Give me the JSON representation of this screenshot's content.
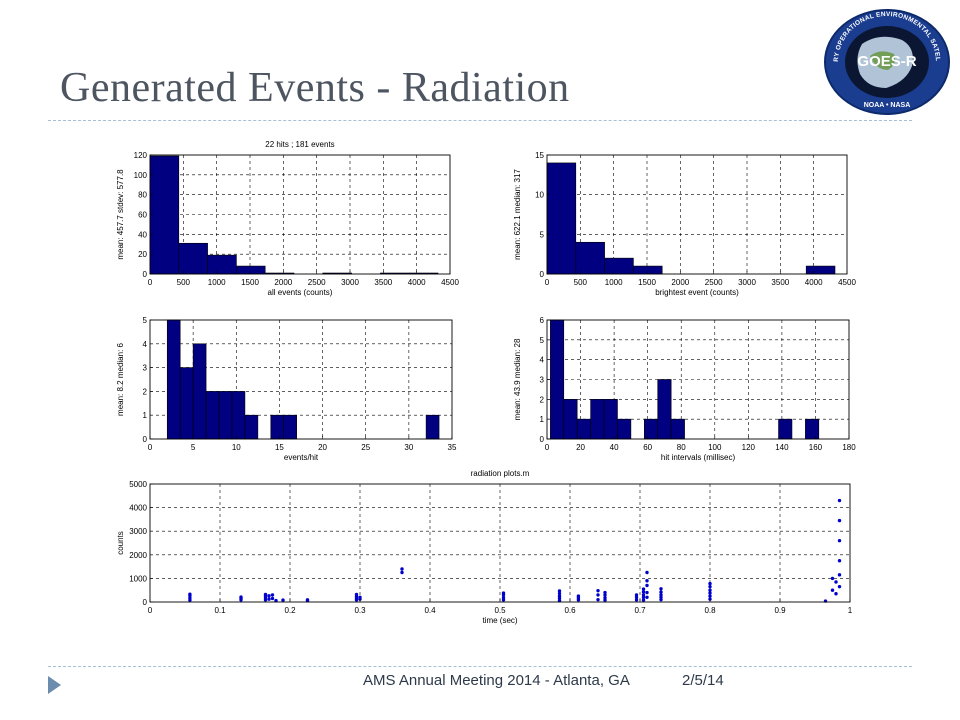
{
  "slide": {
    "title": "Generated Events - Radiation",
    "footer_left": "AMS Annual Meeting 2014 - Atlanta, GA",
    "footer_right": "2/5/14",
    "accent_color": "#a8c0d6",
    "title_color": "#4d5561",
    "logo": {
      "icon": "goes-r-mission-logo",
      "center_text": "GOES-R",
      "ring_text": "GEOSTATIONARY OPERATIONAL ENVIRONMENTAL SATELLITE R-SERIES",
      "bottom_text": "NOAA • NASA"
    }
  },
  "chart_data": [
    {
      "type": "bar",
      "title": "22 hits ;  181 events",
      "xlabel": "all events (counts)",
      "ylabel": "mean: 457.7  stdev: 577.8",
      "xlim": [
        0,
        4500
      ],
      "ylim": [
        0,
        120
      ],
      "xticks": [
        0,
        500,
        1000,
        1500,
        2000,
        2500,
        3000,
        3500,
        4000,
        4500
      ],
      "yticks": [
        0,
        20,
        40,
        60,
        80,
        100,
        120
      ],
      "grid": true,
      "bar_color": "#000080",
      "bins": [
        [
          0,
          432,
          119
        ],
        [
          432,
          864,
          31
        ],
        [
          864,
          1296,
          19
        ],
        [
          1296,
          1728,
          8
        ],
        [
          1728,
          2160,
          1
        ],
        [
          2592,
          3024,
          1
        ],
        [
          3456,
          3888,
          1
        ],
        [
          3888,
          4320,
          1
        ]
      ]
    },
    {
      "type": "bar",
      "title": "",
      "xlabel": "brightest event (counts)",
      "ylabel": "mean: 622.1  median: 317",
      "xlim": [
        0,
        4500
      ],
      "ylim": [
        0,
        15
      ],
      "xticks": [
        0,
        500,
        1000,
        1500,
        2000,
        2500,
        3000,
        3500,
        4000,
        4500
      ],
      "yticks": [
        0,
        5,
        10,
        15
      ],
      "grid": true,
      "bar_color": "#000080",
      "bins": [
        [
          0,
          432,
          14
        ],
        [
          432,
          864,
          4
        ],
        [
          864,
          1296,
          2
        ],
        [
          1296,
          1728,
          1
        ],
        [
          3888,
          4320,
          1
        ]
      ]
    },
    {
      "type": "bar",
      "title": "",
      "xlabel": "events/hit",
      "ylabel": "mean: 8.2  median: 6",
      "xlim": [
        0,
        35
      ],
      "ylim": [
        0,
        5
      ],
      "xticks": [
        0,
        5,
        10,
        15,
        20,
        25,
        30,
        35
      ],
      "yticks": [
        0,
        1,
        2,
        3,
        4,
        5
      ],
      "grid": true,
      "bar_color": "#000080",
      "bins": [
        [
          2,
          3.5,
          5
        ],
        [
          3.5,
          5,
          3
        ],
        [
          5,
          6.5,
          4
        ],
        [
          6.5,
          8,
          2
        ],
        [
          8,
          9.5,
          2
        ],
        [
          9.5,
          11,
          2
        ],
        [
          11,
          12.5,
          1
        ],
        [
          14,
          15.5,
          1
        ],
        [
          15.5,
          17,
          1
        ],
        [
          32,
          33.5,
          1
        ]
      ]
    },
    {
      "type": "bar",
      "title": "",
      "xlabel": "hit intervals (millisec)",
      "ylabel": "mean: 43.9  median: 28",
      "xlim": [
        0,
        180
      ],
      "ylim": [
        0,
        6
      ],
      "xticks": [
        0,
        20,
        40,
        60,
        80,
        100,
        120,
        140,
        160,
        180
      ],
      "yticks": [
        0,
        1,
        2,
        3,
        4,
        5,
        6
      ],
      "grid": true,
      "bar_color": "#000080",
      "bins": [
        [
          2,
          10,
          6
        ],
        [
          10,
          18,
          2
        ],
        [
          18,
          26,
          1
        ],
        [
          26,
          34,
          2
        ],
        [
          34,
          42,
          2
        ],
        [
          42,
          50,
          1
        ],
        [
          58,
          66,
          1
        ],
        [
          66,
          74,
          3
        ],
        [
          74,
          82,
          1
        ],
        [
          138,
          146,
          1
        ],
        [
          154,
          162,
          1
        ]
      ]
    },
    {
      "type": "scatter",
      "title": "radiation plots.m",
      "xlabel": "time (sec)",
      "ylabel": "counts",
      "xlim": [
        0,
        1
      ],
      "ylim": [
        0,
        5000
      ],
      "xticks": [
        0,
        0.1,
        0.2,
        0.3,
        0.4,
        0.5,
        0.6,
        0.7,
        0.8,
        0.9,
        1
      ],
      "yticks": [
        0,
        1000,
        2000,
        3000,
        4000,
        5000
      ],
      "grid": true,
      "marker_color": "#0000cc",
      "points": [
        [
          0.057,
          80
        ],
        [
          0.057,
          170
        ],
        [
          0.057,
          270
        ],
        [
          0.057,
          330
        ],
        [
          0.13,
          90
        ],
        [
          0.13,
          160
        ],
        [
          0.13,
          210
        ],
        [
          0.165,
          90
        ],
        [
          0.165,
          180
        ],
        [
          0.165,
          260
        ],
        [
          0.165,
          320
        ],
        [
          0.17,
          120
        ],
        [
          0.17,
          260
        ],
        [
          0.175,
          150
        ],
        [
          0.175,
          300
        ],
        [
          0.18,
          60
        ],
        [
          0.19,
          80
        ],
        [
          0.225,
          60
        ],
        [
          0.225,
          90
        ],
        [
          0.295,
          90
        ],
        [
          0.295,
          150
        ],
        [
          0.295,
          230
        ],
        [
          0.295,
          320
        ],
        [
          0.3,
          120
        ],
        [
          0.3,
          200
        ],
        [
          0.36,
          1250
        ],
        [
          0.36,
          1400
        ],
        [
          0.505,
          90
        ],
        [
          0.505,
          190
        ],
        [
          0.505,
          300
        ],
        [
          0.505,
          380
        ],
        [
          0.585,
          60
        ],
        [
          0.585,
          160
        ],
        [
          0.585,
          250
        ],
        [
          0.585,
          360
        ],
        [
          0.585,
          470
        ],
        [
          0.612,
          90
        ],
        [
          0.612,
          170
        ],
        [
          0.612,
          250
        ],
        [
          0.64,
          100
        ],
        [
          0.64,
          300
        ],
        [
          0.64,
          480
        ],
        [
          0.65,
          80
        ],
        [
          0.65,
          180
        ],
        [
          0.65,
          300
        ],
        [
          0.65,
          400
        ],
        [
          0.695,
          90
        ],
        [
          0.695,
          200
        ],
        [
          0.695,
          300
        ],
        [
          0.705,
          80
        ],
        [
          0.705,
          200
        ],
        [
          0.705,
          300
        ],
        [
          0.705,
          430
        ],
        [
          0.705,
          550
        ],
        [
          0.71,
          200
        ],
        [
          0.71,
          400
        ],
        [
          0.71,
          700
        ],
        [
          0.71,
          900
        ],
        [
          0.71,
          1250
        ],
        [
          0.73,
          100
        ],
        [
          0.73,
          200
        ],
        [
          0.73,
          300
        ],
        [
          0.73,
          420
        ],
        [
          0.73,
          560
        ],
        [
          0.8,
          120
        ],
        [
          0.8,
          250
        ],
        [
          0.8,
          380
        ],
        [
          0.8,
          500
        ],
        [
          0.8,
          650
        ],
        [
          0.8,
          780
        ],
        [
          0.965,
          40
        ],
        [
          0.975,
          500
        ],
        [
          0.975,
          1000
        ],
        [
          0.98,
          350
        ],
        [
          0.98,
          850
        ],
        [
          0.985,
          650
        ],
        [
          0.985,
          1150
        ],
        [
          0.985,
          1750
        ],
        [
          0.985,
          2600
        ],
        [
          0.985,
          3450
        ],
        [
          0.985,
          4300
        ]
      ]
    }
  ]
}
